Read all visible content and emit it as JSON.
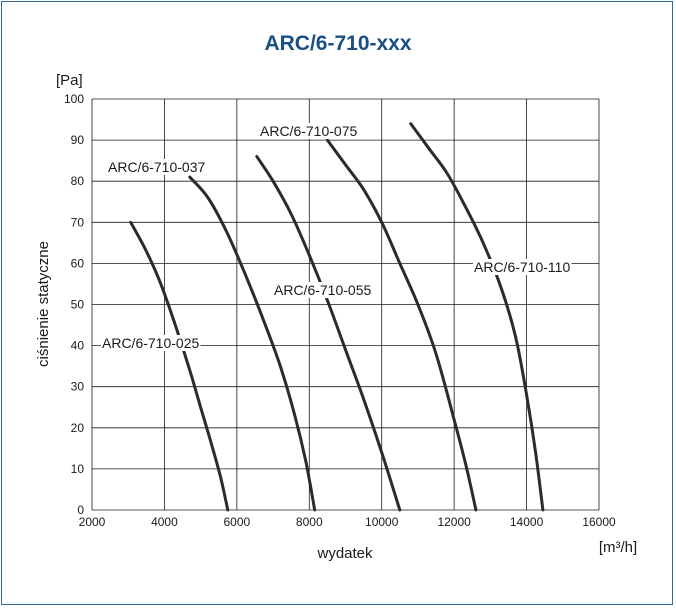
{
  "chart_data": {
    "type": "line",
    "title": "ARC/6-710-xxx",
    "xlabel": "wydatek",
    "ylabel": "ciśnienie statyczne",
    "x_unit": "[m³/h]",
    "y_unit": "[Pa]",
    "xlim": [
      2000,
      16000
    ],
    "ylim": [
      0,
      100
    ],
    "x_ticks": [
      "2000",
      "4000",
      "6000",
      "8000",
      "10000",
      "12000",
      "14000",
      "16000"
    ],
    "y_ticks": [
      "0",
      "10",
      "20",
      "30",
      "40",
      "50",
      "60",
      "70",
      "80",
      "90",
      "100"
    ],
    "grid": true,
    "series": [
      {
        "name": "ARC/6-710-025",
        "points": [
          [
            3070,
            70
          ],
          [
            3500,
            63
          ],
          [
            3900,
            55
          ],
          [
            4300,
            45
          ],
          [
            4700,
            34
          ],
          [
            5000,
            25
          ],
          [
            5300,
            16
          ],
          [
            5550,
            8
          ],
          [
            5750,
            0
          ]
        ]
      },
      {
        "name": "ARC/6-710-037",
        "points": [
          [
            4700,
            81
          ],
          [
            5200,
            76
          ],
          [
            5700,
            68
          ],
          [
            6200,
            58
          ],
          [
            6700,
            47
          ],
          [
            7200,
            35
          ],
          [
            7600,
            23
          ],
          [
            7900,
            12
          ],
          [
            8150,
            0
          ]
        ]
      },
      {
        "name": "ARC/6-710-055",
        "points": [
          [
            6550,
            86
          ],
          [
            7000,
            80
          ],
          [
            7500,
            72
          ],
          [
            8000,
            62
          ],
          [
            8500,
            51
          ],
          [
            9000,
            39
          ],
          [
            9500,
            27
          ],
          [
            10000,
            14
          ],
          [
            10500,
            0
          ]
        ]
      },
      {
        "name": "ARC/6-710-075",
        "points": [
          [
            8500,
            90
          ],
          [
            9000,
            84
          ],
          [
            9500,
            78
          ],
          [
            10000,
            70
          ],
          [
            10500,
            60
          ],
          [
            11000,
            50
          ],
          [
            11500,
            38
          ],
          [
            12000,
            22
          ],
          [
            12350,
            10
          ],
          [
            12600,
            0
          ]
        ]
      },
      {
        "name": "ARC/6-710-110",
        "points": [
          [
            10800,
            94
          ],
          [
            11300,
            88
          ],
          [
            11800,
            82
          ],
          [
            12300,
            74
          ],
          [
            12800,
            65
          ],
          [
            13300,
            54
          ],
          [
            13700,
            42
          ],
          [
            14000,
            28
          ],
          [
            14250,
            14
          ],
          [
            14450,
            0
          ]
        ]
      }
    ]
  }
}
